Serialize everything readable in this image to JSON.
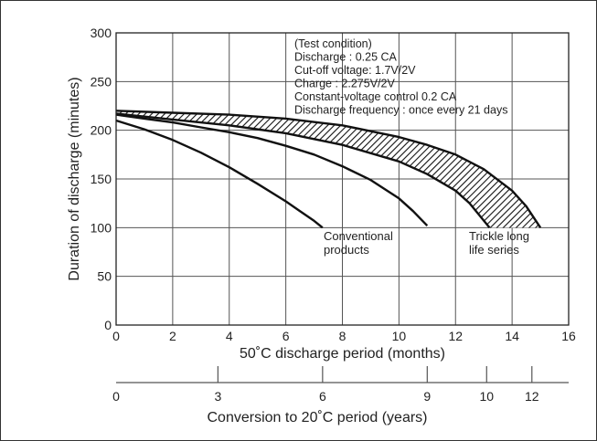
{
  "chart_data": {
    "type": "line",
    "ylabel": "Duration of discharge (minutes)",
    "xlabel": "50˚C discharge period (months)",
    "xlim": [
      0,
      16
    ],
    "ylim": [
      0,
      300
    ],
    "x_ticks": [
      "0",
      "2",
      "4",
      "6",
      "8",
      "10",
      "12",
      "14",
      "16"
    ],
    "y_ticks": [
      "0",
      "50",
      "100",
      "150",
      "200",
      "250",
      "300"
    ],
    "grid": true,
    "secondary_axis": {
      "label": "Conversion to 20˚C period (years)",
      "ticks": [
        {
          "label": "0",
          "month": 0
        },
        {
          "label": "3",
          "month": 3.6
        },
        {
          "label": "6",
          "month": 7.3
        },
        {
          "label": "9",
          "month": 11
        },
        {
          "label": "10",
          "month": 13.1
        },
        {
          "label": "12",
          "month": 14.7
        }
      ]
    },
    "series": [
      {
        "name": "Conventional products",
        "role": "conventional-short",
        "x": [
          0,
          1,
          2,
          3,
          4,
          5,
          6,
          6.5,
          7,
          7.3
        ],
        "y": [
          210,
          201,
          190,
          177,
          162,
          145,
          127,
          117,
          107,
          100
        ]
      },
      {
        "name": "Conventional products",
        "role": "conventional-long",
        "x": [
          0,
          1,
          2,
          3,
          4,
          5,
          6,
          7,
          8,
          9,
          10,
          10.5,
          11
        ],
        "y": [
          216,
          212,
          208,
          203,
          198,
          192,
          184,
          175,
          163,
          149,
          130,
          117,
          102
        ]
      },
      {
        "name": "Trickle long life series",
        "role": "band-lower",
        "x": [
          0,
          2,
          4,
          6,
          8,
          10,
          11,
          12,
          12.5,
          13.2
        ],
        "y": [
          217,
          211,
          205,
          197,
          185,
          168,
          155,
          138,
          125,
          100
        ]
      },
      {
        "name": "Trickle long life series",
        "role": "band-upper",
        "x": [
          0,
          2,
          4,
          6,
          8,
          10,
          11,
          12,
          13,
          14,
          14.5,
          15
        ],
        "y": [
          220,
          218,
          216,
          212,
          205,
          193,
          185,
          175,
          160,
          138,
          122,
          100
        ]
      }
    ],
    "annotations": {
      "test_condition": [
        "(Test condition)",
        "Discharge : 0.25 CA",
        "Cut-off voltage: 1.7V/2V",
        "Charge : 2.275V/2V",
        "Constant-voltage control 0.2 CA",
        "Discharge frequency : once every 21 days"
      ],
      "conventional_label": [
        "Conventional",
        "products"
      ],
      "trickle_label": [
        "Trickle long",
        "life series"
      ]
    }
  }
}
